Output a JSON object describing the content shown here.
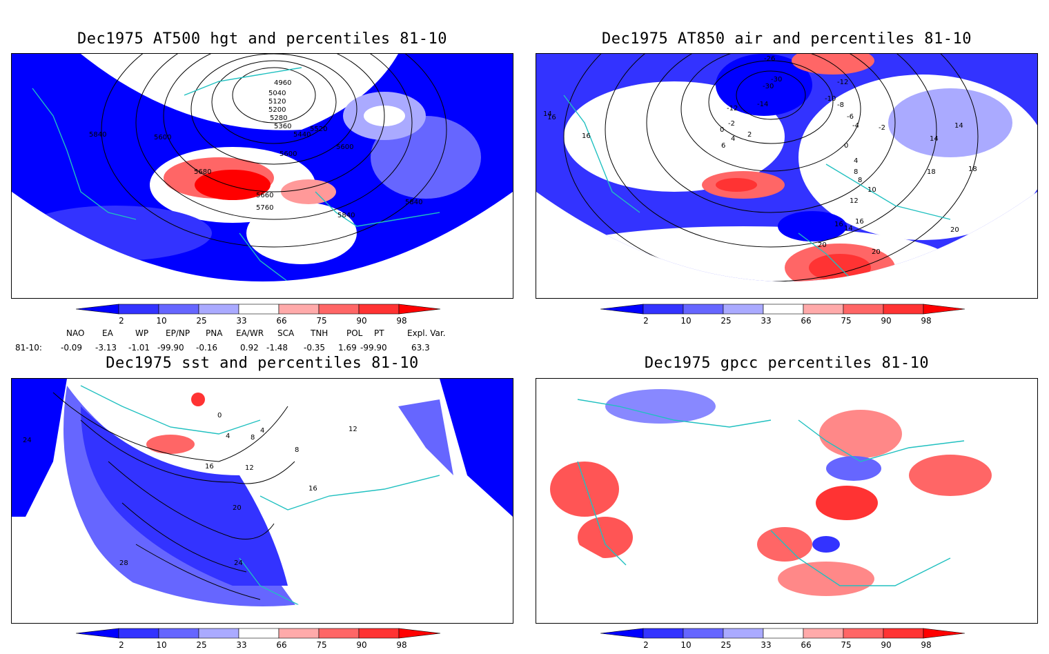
{
  "panels": [
    {
      "title": "Dec1975 AT500 hgt and percentiles 81-10",
      "contour_labels": [
        "4960",
        "5040",
        "5120",
        "5200",
        "5280",
        "5360",
        "5440",
        "5520",
        "5600",
        "5600",
        "5600",
        "5680",
        "5660",
        "5760",
        "5840",
        "5840",
        "5840"
      ]
    },
    {
      "title": "Dec1975 AT850 air and percentiles 81-10",
      "contour_labels": [
        "-26",
        "-30",
        "-30",
        "-12",
        "-10",
        "-8",
        "-6",
        "-4",
        "-2",
        "-2",
        "-14",
        "-12",
        "0",
        "0",
        "2",
        "4",
        "4",
        "6",
        "8",
        "8",
        "10",
        "12",
        "14",
        "14",
        "14",
        "16",
        "16",
        "16",
        "16",
        "18",
        "18",
        "20",
        "20",
        "20",
        "14"
      ]
    },
    {
      "title": "Dec1975 sst and percentiles 81-10",
      "contour_labels": [
        "0",
        "4",
        "4",
        "8",
        "8",
        "12",
        "12",
        "16",
        "16",
        "20",
        "24",
        "24",
        "28"
      ]
    },
    {
      "title": "Dec1975 gpcc percentiles 81-10",
      "contour_labels": []
    }
  ],
  "colorbar": {
    "labels": [
      "2",
      "10",
      "25",
      "33",
      "66",
      "75",
      "90",
      "98"
    ],
    "colors": [
      "#0000ff",
      "#3333ff",
      "#6666ff",
      "#aaaaff",
      "#ffffff",
      "#ffaaaa",
      "#ff6666",
      "#ff3333",
      "#ff0000"
    ]
  },
  "indices": {
    "headers": [
      "NAO",
      "EA",
      "WP",
      "EP/NP",
      "PNA",
      "EA/WR",
      "SCA",
      "TNH",
      "POL",
      "PT",
      "Expl. Var."
    ],
    "row_label": "81-10:",
    "values": [
      "-0.09",
      "-3.13",
      "-1.01",
      "-99.90",
      "-0.16",
      "0.92",
      "-1.48",
      "-0.35",
      "1.69",
      "-99.90",
      "63.3"
    ]
  }
}
